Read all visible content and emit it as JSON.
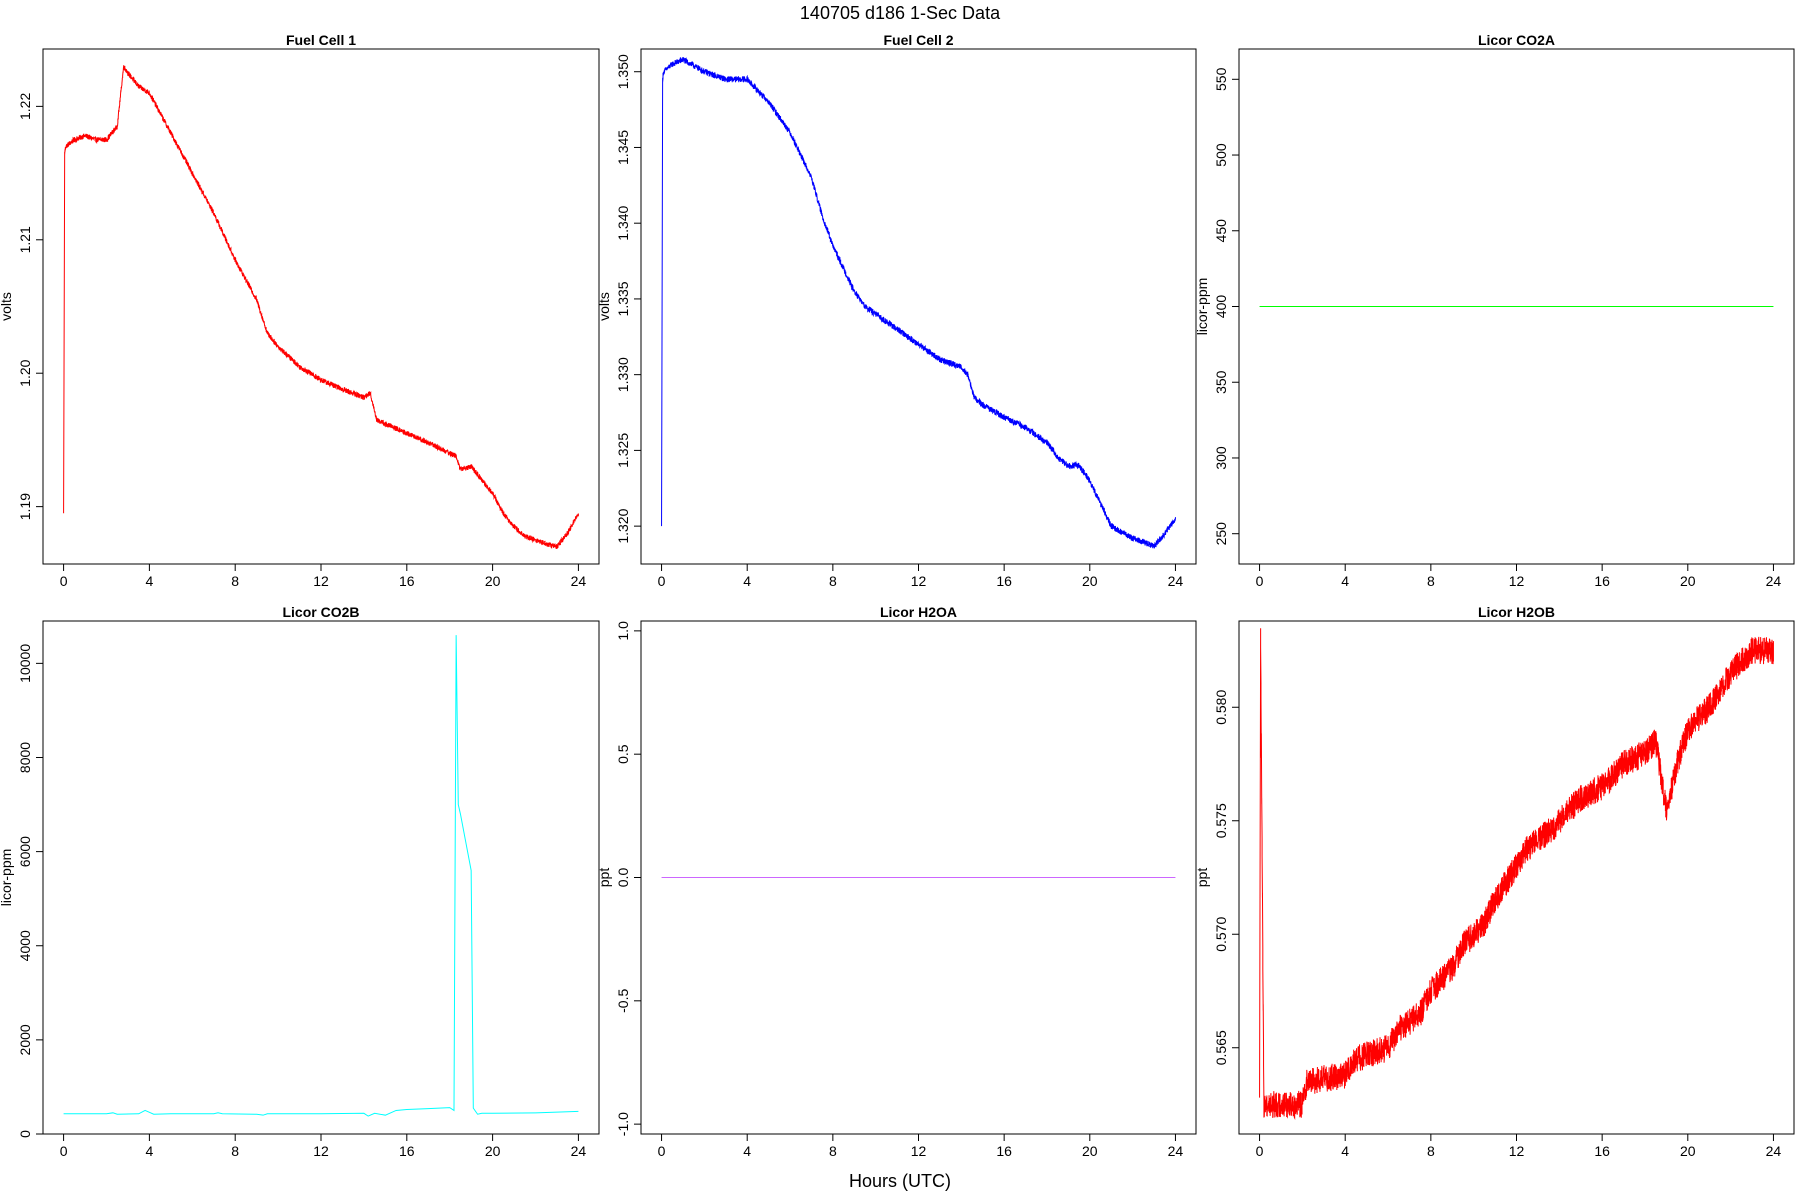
{
  "figure": {
    "title": "140705   d186   1-Sec Data",
    "xlabel": "Hours (UTC)"
  },
  "chart_data": [
    {
      "type": "line",
      "title": "Fuel Cell 1",
      "ylabel": "volts",
      "color": "#ff0000",
      "xlim": [
        -0.96,
        24.96
      ],
      "ylim": [
        1.1857,
        1.2243
      ],
      "xticks": [
        0,
        4,
        8,
        12,
        16,
        20,
        24
      ],
      "yticks": [
        1.19,
        1.2,
        1.21,
        1.22
      ],
      "ytick_labels": [
        "1.19",
        "1.20",
        "1.21",
        "1.22"
      ],
      "noise": 0.0004,
      "x": [
        0,
        0.05,
        0.1,
        0.5,
        1,
        1.5,
        2,
        2.5,
        2.8,
        3,
        3.5,
        4,
        4.5,
        5,
        6,
        7,
        8,
        8.5,
        9,
        9.5,
        10,
        11,
        12,
        13,
        14,
        14.3,
        14.6,
        15,
        16,
        17,
        18,
        18.3,
        18.5,
        19,
        19.5,
        20,
        20.5,
        21,
        21.5,
        22,
        22.5,
        23,
        23.5,
        24
      ],
      "y": [
        1.1895,
        1.2165,
        1.217,
        1.2175,
        1.2178,
        1.2175,
        1.2175,
        1.2185,
        1.223,
        1.2225,
        1.2215,
        1.221,
        1.2195,
        1.218,
        1.215,
        1.212,
        1.2085,
        1.207,
        1.2055,
        1.203,
        1.202,
        1.2005,
        1.1995,
        1.1988,
        1.1982,
        1.1985,
        1.1965,
        1.1962,
        1.1955,
        1.1948,
        1.194,
        1.1938,
        1.1928,
        1.193,
        1.192,
        1.191,
        1.1895,
        1.1885,
        1.1878,
        1.1875,
        1.1872,
        1.187,
        1.188,
        1.1895
      ]
    },
    {
      "type": "line",
      "title": "Fuel Cell 2",
      "ylabel": "volts",
      "color": "#0000ff",
      "xlim": [
        -0.96,
        24.96
      ],
      "ylim": [
        1.3175,
        1.3515
      ],
      "xticks": [
        0,
        4,
        8,
        12,
        16,
        20,
        24
      ],
      "yticks": [
        1.32,
        1.325,
        1.33,
        1.335,
        1.34,
        1.345,
        1.35
      ],
      "ytick_labels": [
        "1.320",
        "1.325",
        "1.330",
        "1.335",
        "1.340",
        "1.345",
        "1.350"
      ],
      "noise": 0.0004,
      "x": [
        0,
        0.05,
        0.1,
        0.5,
        1,
        2,
        3,
        4,
        5,
        6,
        7,
        7.5,
        8,
        8.5,
        9,
        9.5,
        10,
        11,
        12,
        13,
        14,
        14.3,
        14.6,
        15,
        16,
        17,
        18,
        18.3,
        18.5,
        19,
        19.5,
        20,
        20.5,
        21,
        22,
        23,
        23.5,
        24
      ],
      "y": [
        1.32,
        1.3495,
        1.35,
        1.3505,
        1.3508,
        1.35,
        1.3495,
        1.3495,
        1.348,
        1.346,
        1.343,
        1.3405,
        1.3385,
        1.337,
        1.3355,
        1.3345,
        1.334,
        1.333,
        1.332,
        1.331,
        1.3305,
        1.33,
        1.3285,
        1.328,
        1.3272,
        1.3265,
        1.3255,
        1.325,
        1.3245,
        1.324,
        1.324,
        1.323,
        1.3215,
        1.32,
        1.3192,
        1.3187,
        1.3195,
        1.3205
      ]
    },
    {
      "type": "line",
      "title": "Licor CO2A",
      "ylabel": "licor-ppm",
      "color": "#00ff00",
      "xlim": [
        -0.96,
        24.96
      ],
      "ylim": [
        230,
        570
      ],
      "xticks": [
        0,
        4,
        8,
        12,
        16,
        20,
        24
      ],
      "yticks": [
        250,
        300,
        350,
        400,
        450,
        500,
        550
      ],
      "ytick_labels": [
        "250",
        "300",
        "350",
        "400",
        "450",
        "500",
        "550"
      ],
      "noise": 0,
      "x": [
        0,
        24
      ],
      "y": [
        400,
        400
      ]
    },
    {
      "type": "line",
      "title": "Licor CO2B",
      "ylabel": "licor-ppm",
      "color": "#00ffff",
      "xlim": [
        -0.96,
        24.96
      ],
      "ylim": [
        0,
        10900
      ],
      "xticks": [
        0,
        4,
        8,
        12,
        16,
        20,
        24
      ],
      "yticks": [
        0,
        2000,
        4000,
        6000,
        8000,
        10000
      ],
      "ytick_labels": [
        "0",
        "2000",
        "4000",
        "6000",
        "8000",
        "10000"
      ],
      "noise": 0,
      "x": [
        0,
        2,
        2.3,
        2.5,
        3.5,
        3.8,
        4.0,
        4.2,
        5,
        7,
        7.2,
        7.4,
        9,
        9.3,
        9.5,
        12,
        14,
        14.2,
        14.5,
        15,
        15.5,
        16,
        17,
        18,
        18.2,
        18.3,
        18.4,
        18.5,
        19.0,
        19.1,
        19.3,
        19.5,
        20,
        22,
        24
      ],
      "y": [
        430,
        430,
        450,
        420,
        430,
        500,
        460,
        420,
        430,
        430,
        450,
        430,
        420,
        400,
        430,
        430,
        440,
        380,
        440,
        400,
        500,
        520,
        540,
        560,
        500,
        10600,
        7000,
        6800,
        5600,
        550,
        420,
        440,
        440,
        450,
        480
      ]
    },
    {
      "type": "line",
      "title": "Licor H2OA",
      "ylabel": "ppt",
      "color": "#cc66ff",
      "xlim": [
        -0.96,
        24.96
      ],
      "ylim": [
        -1.04,
        1.04
      ],
      "xticks": [
        0,
        4,
        8,
        12,
        16,
        20,
        24
      ],
      "yticks": [
        -1.0,
        -0.5,
        0.0,
        0.5,
        1.0
      ],
      "ytick_labels": [
        "-1.0",
        "-0.5",
        "0.0",
        "0.5",
        "1.0"
      ],
      "noise": 0,
      "x": [
        0,
        24
      ],
      "y": [
        0,
        0
      ]
    },
    {
      "type": "line",
      "title": "Licor H2OB",
      "ylabel": "ppt",
      "color": "#ff0000",
      "xlim": [
        -0.96,
        24.96
      ],
      "ylim": [
        0.5612,
        0.5838
      ],
      "xticks": [
        0,
        4,
        8,
        12,
        16,
        20,
        24
      ],
      "yticks": [
        0.565,
        0.57,
        0.575,
        0.58
      ],
      "ytick_labels": [
        "0.565",
        "0.570",
        "0.575",
        "0.580"
      ],
      "noise": 0.0012,
      "x": [
        0,
        0.05,
        0.2,
        2,
        2.2,
        4,
        4.5,
        6,
        6.5,
        7.5,
        8,
        9,
        9.5,
        10.5,
        11,
        12,
        12.5,
        13.5,
        14,
        15,
        16,
        17,
        18,
        18.5,
        19,
        19.5,
        20,
        21,
        22,
        23,
        24
      ],
      "y": [
        0.5628,
        0.583,
        0.5625,
        0.5625,
        0.5635,
        0.5638,
        0.5645,
        0.565,
        0.5658,
        0.5665,
        0.5675,
        0.5685,
        0.5695,
        0.5705,
        0.5715,
        0.573,
        0.5738,
        0.5745,
        0.575,
        0.576,
        0.5765,
        0.5775,
        0.578,
        0.5785,
        0.5755,
        0.5775,
        0.579,
        0.58,
        0.5815,
        0.5825,
        0.5825
      ]
    }
  ]
}
